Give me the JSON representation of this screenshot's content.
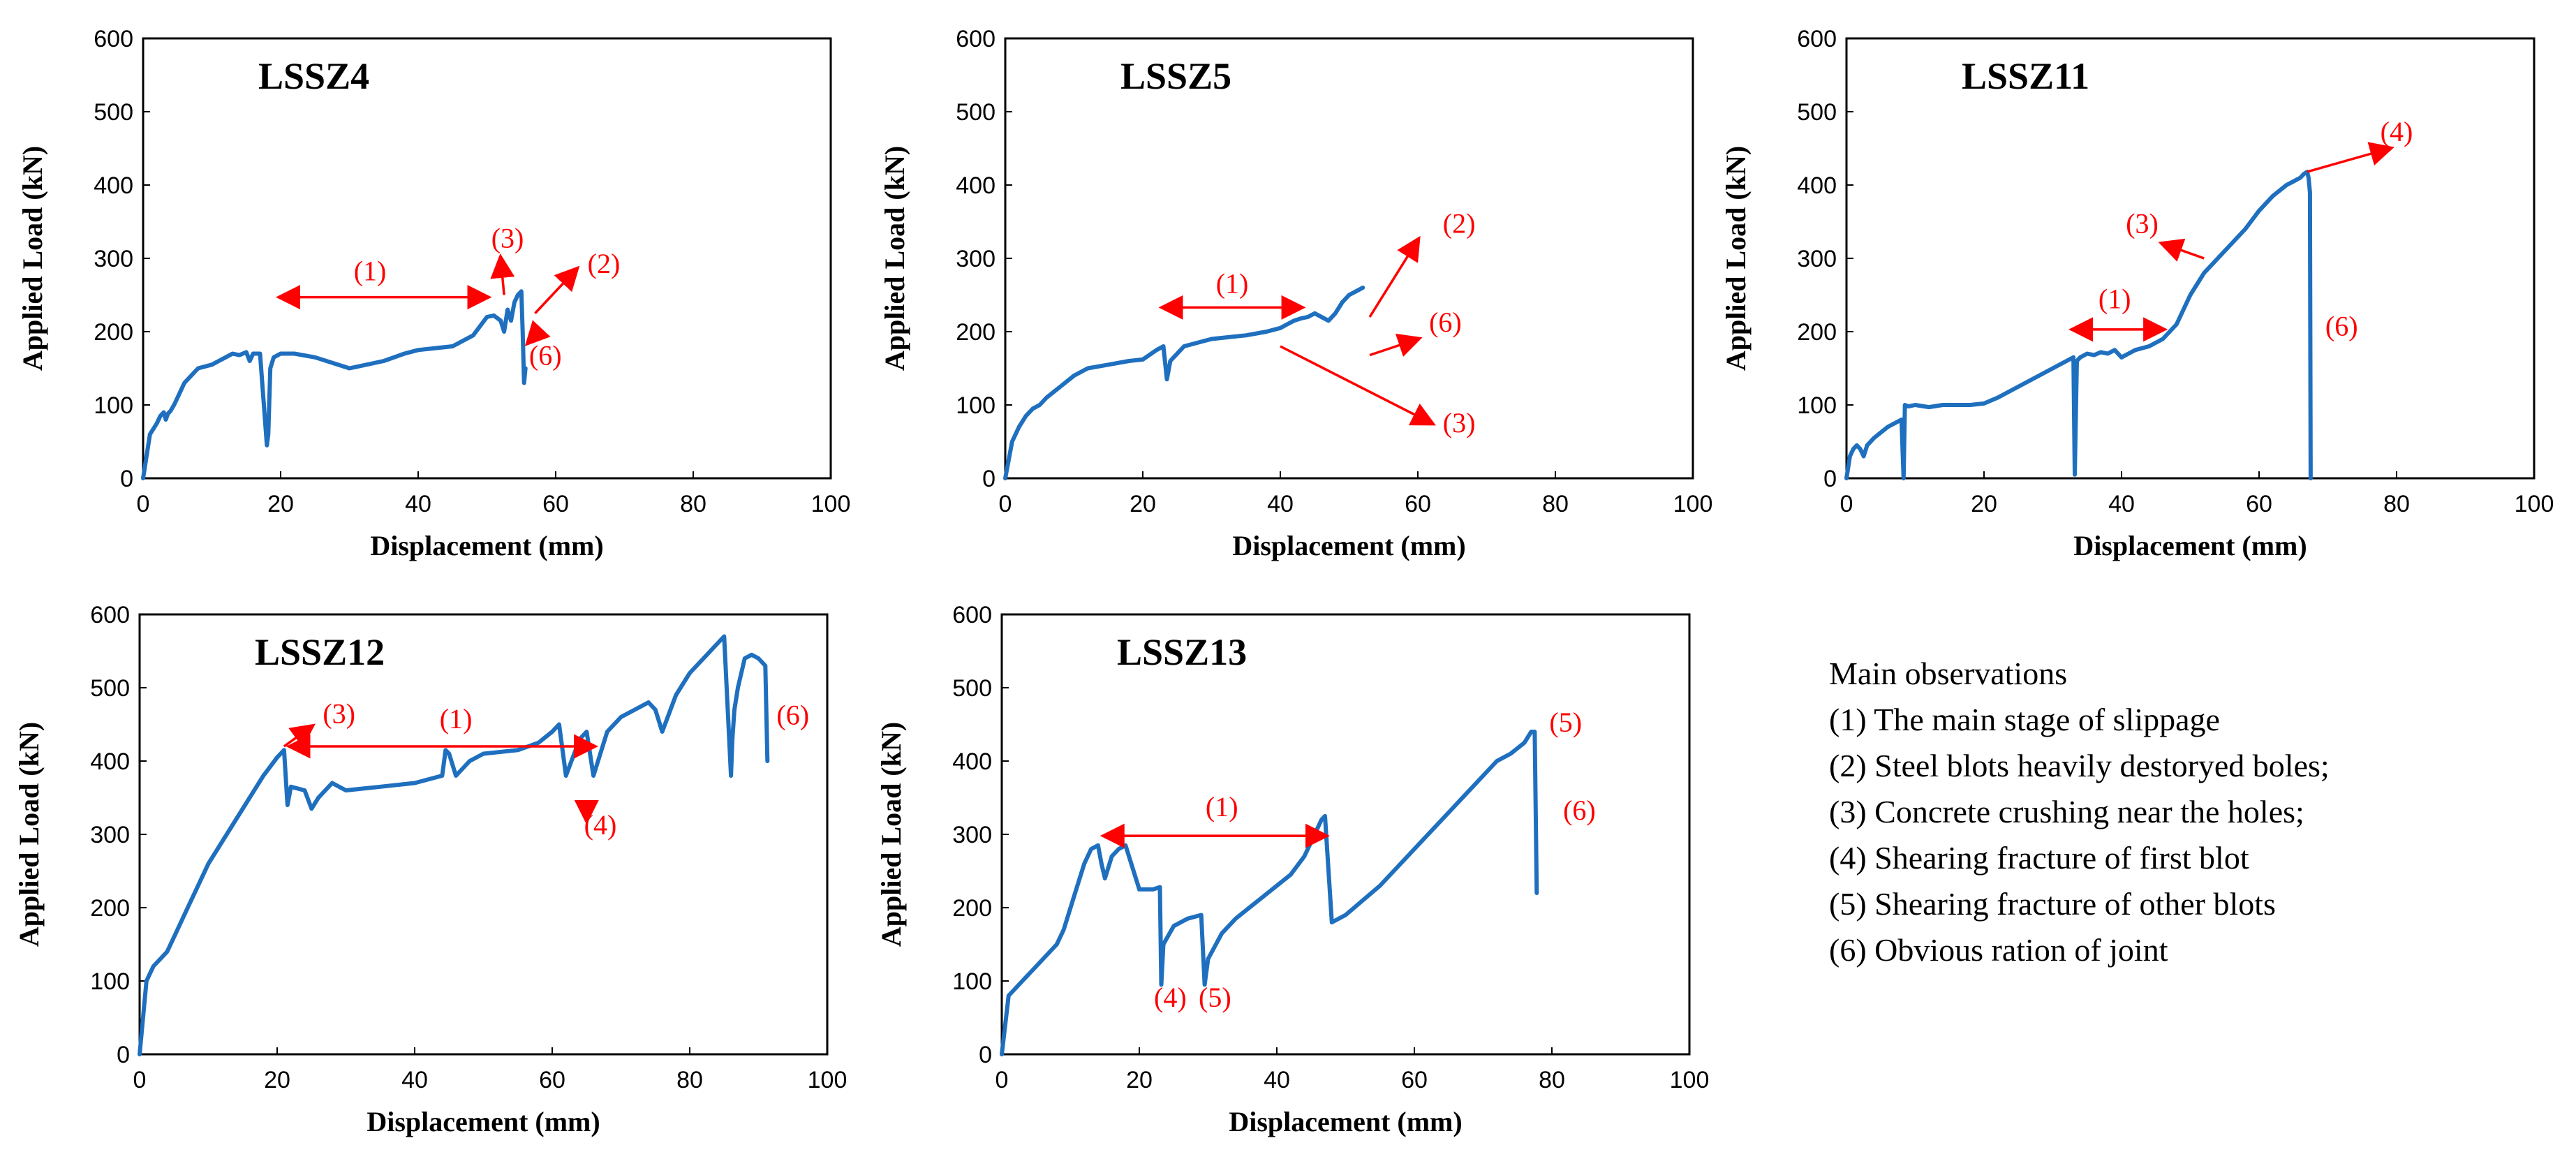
{
  "colors": {
    "curve": "#1f6fbf",
    "annotation": "#ff0000",
    "axis": "#000000"
  },
  "chart_data": [
    {
      "type": "line",
      "title": "LSSZ4",
      "xlabel": "Displacement (mm)",
      "ylabel": "Applied Load (kN)",
      "xlim": [
        0,
        100
      ],
      "ylim": [
        0,
        600
      ],
      "xticks": [
        "0",
        "20",
        "40",
        "60",
        "80",
        "100"
      ],
      "yticks": [
        "0",
        "100",
        "200",
        "300",
        "400",
        "500",
        "600"
      ],
      "series": [
        {
          "name": "LSSZ4",
          "x": [
            0,
            1,
            2,
            2.5,
            3,
            3.3,
            3.6,
            4,
            4.5,
            5,
            5.5,
            6,
            7,
            8,
            10,
            11,
            12,
            13,
            14,
            15,
            15.5,
            16,
            17,
            18,
            18.2,
            18.5,
            19,
            20,
            22,
            25,
            30,
            35,
            38,
            40,
            45,
            48,
            50,
            51,
            52,
            52.5,
            53,
            53.5,
            54,
            54.5,
            55,
            55.2,
            55.4,
            55.6
          ],
          "y": [
            0,
            60,
            75,
            85,
            90,
            80,
            88,
            92,
            100,
            110,
            120,
            130,
            140,
            150,
            155,
            160,
            165,
            170,
            168,
            172,
            160,
            170,
            170,
            45,
            60,
            150,
            165,
            170,
            170,
            165,
            150,
            160,
            170,
            175,
            180,
            195,
            220,
            222,
            215,
            200,
            230,
            215,
            240,
            250,
            255,
            200,
            130,
            150
          ]
        }
      ],
      "annotations": [
        {
          "label": "(1)",
          "x": 33,
          "y": 270,
          "arrow": "double",
          "from": [
            20,
            247
          ],
          "to": [
            50,
            247
          ]
        },
        {
          "label": "(3)",
          "x": 53,
          "y": 315,
          "arrow": "single",
          "from": [
            52.5,
            250
          ],
          "to": [
            52,
            300
          ]
        },
        {
          "label": "(2)",
          "x": 67,
          "y": 280,
          "arrow": "single",
          "from": [
            57,
            225
          ],
          "to": [
            63,
            285
          ]
        },
        {
          "label": "(6)",
          "x": 58.5,
          "y": 155,
          "arrow": "single",
          "from": [
            57.5,
            200
          ],
          "to": [
            56,
            185
          ]
        }
      ]
    },
    {
      "type": "line",
      "title": "LSSZ5",
      "xlabel": "Displacement (mm)",
      "ylabel": "Applied Load (kN)",
      "xlim": [
        0,
        100
      ],
      "ylim": [
        0,
        600
      ],
      "xticks": [
        "0",
        "20",
        "40",
        "60",
        "80",
        "100"
      ],
      "yticks": [
        "0",
        "100",
        "200",
        "300",
        "400",
        "500",
        "600"
      ],
      "series": [
        {
          "name": "LSSZ5",
          "x": [
            0,
            1,
            2,
            3,
            4,
            5,
            6,
            8,
            10,
            12,
            15,
            18,
            20,
            22,
            23,
            23.5,
            24,
            26,
            30,
            35,
            38,
            40,
            41,
            42,
            43,
            44,
            45,
            47,
            48,
            49,
            50,
            51,
            52
          ],
          "y": [
            0,
            50,
            70,
            85,
            95,
            100,
            110,
            125,
            140,
            150,
            155,
            160,
            162,
            175,
            180,
            135,
            160,
            180,
            190,
            195,
            200,
            205,
            210,
            215,
            218,
            220,
            225,
            215,
            225,
            240,
            250,
            255,
            260
          ]
        }
      ],
      "annotations": [
        {
          "label": "(1)",
          "x": 33,
          "y": 253,
          "arrow": "double",
          "from": [
            23,
            233
          ],
          "to": [
            43,
            233
          ]
        },
        {
          "label": "(2)",
          "x": 66,
          "y": 335,
          "arrow": "single",
          "from": [
            53,
            220
          ],
          "to": [
            60,
            325
          ]
        },
        {
          "label": "(6)",
          "x": 64,
          "y": 200,
          "arrow": "single",
          "from": [
            53,
            168
          ],
          "to": [
            60,
            190
          ]
        },
        {
          "label": "(3)",
          "x": 66,
          "y": 63,
          "arrow": "single",
          "from": [
            40,
            180
          ],
          "to": [
            62,
            75
          ]
        }
      ]
    },
    {
      "type": "line",
      "title": "LSSZ11",
      "xlabel": "Displacement (mm)",
      "ylabel": "Applied Load (kN)",
      "xlim": [
        0,
        100
      ],
      "ylim": [
        0,
        600
      ],
      "xticks": [
        "0",
        "20",
        "40",
        "60",
        "80",
        "100"
      ],
      "yticks": [
        "0",
        "100",
        "200",
        "300",
        "400",
        "500",
        "600"
      ],
      "series": [
        {
          "name": "LSSZ11",
          "x": [
            0,
            0.5,
            1,
            1.5,
            2,
            2.5,
            3,
            4,
            6,
            8,
            8.3,
            8.5,
            9,
            10,
            12,
            14,
            16,
            18,
            20,
            22,
            24,
            26,
            28,
            30,
            32,
            33,
            33.2,
            33.5,
            34,
            35,
            36,
            37,
            38,
            39,
            40,
            42,
            44,
            46,
            48,
            50,
            52,
            54,
            56,
            58,
            60,
            62,
            64,
            65,
            66,
            66.5,
            67,
            67.2,
            67.4,
            67.5
          ],
          "y": [
            0,
            30,
            40,
            45,
            40,
            30,
            45,
            55,
            70,
            80,
            0,
            100,
            98,
            100,
            97,
            100,
            100,
            100,
            102,
            110,
            120,
            130,
            140,
            150,
            160,
            165,
            5,
            160,
            165,
            170,
            168,
            172,
            170,
            175,
            165,
            175,
            180,
            190,
            210,
            250,
            280,
            300,
            320,
            340,
            365,
            385,
            400,
            405,
            410,
            415,
            418,
            410,
            390,
            0
          ]
        }
      ],
      "annotations": [
        {
          "label": "(1)",
          "x": 39,
          "y": 232,
          "arrow": "double",
          "from": [
            33,
            203
          ],
          "to": [
            46,
            203
          ]
        },
        {
          "label": "(3)",
          "x": 43,
          "y": 335,
          "arrow": "single",
          "from": [
            52,
            300
          ],
          "to": [
            46,
            320
          ]
        },
        {
          "label": "(4)",
          "x": 80,
          "y": 460,
          "arrow": "single",
          "from": [
            67,
            418
          ],
          "to": [
            79,
            450
          ]
        },
        {
          "label": "(6)",
          "x": 72,
          "y": 195,
          "arrow": "none",
          "from": [
            72,
            195
          ],
          "to": [
            72,
            195
          ]
        }
      ]
    },
    {
      "type": "line",
      "title": "LSSZ12",
      "xlabel": "Displacement (mm)",
      "ylabel": "Applied Load (kN)",
      "xlim": [
        0,
        100
      ],
      "ylim": [
        0,
        600
      ],
      "xticks": [
        "0",
        "20",
        "40",
        "60",
        "80",
        "100"
      ],
      "yticks": [
        "0",
        "100",
        "200",
        "300",
        "400",
        "500",
        "600"
      ],
      "series": [
        {
          "name": "LSSZ12",
          "x": [
            0,
            1,
            2,
            3,
            4,
            5,
            6,
            7,
            8,
            10,
            12,
            14,
            16,
            18,
            20,
            21,
            21.5,
            22,
            24,
            25,
            26,
            28,
            30,
            35,
            40,
            44,
            44.5,
            45,
            46,
            48,
            50,
            55,
            58,
            60,
            61,
            62,
            64,
            65,
            66,
            68,
            70,
            72,
            74,
            75,
            76,
            78,
            80,
            82,
            84,
            85,
            86,
            86.2,
            86.5,
            87,
            88,
            89,
            90,
            91,
            91.3
          ],
          "y": [
            0,
            100,
            120,
            130,
            140,
            160,
            180,
            200,
            220,
            260,
            290,
            320,
            350,
            380,
            405,
            415,
            340,
            365,
            360,
            335,
            350,
            370,
            360,
            365,
            370,
            380,
            415,
            410,
            380,
            400,
            410,
            415,
            425,
            440,
            450,
            380,
            430,
            440,
            380,
            440,
            460,
            470,
            480,
            470,
            440,
            490,
            520,
            540,
            560,
            570,
            380,
            430,
            470,
            500,
            540,
            545,
            540,
            530,
            400
          ]
        }
      ],
      "annotations": [
        {
          "label": "(3)",
          "x": 29,
          "y": 452,
          "arrow": "single",
          "from": [
            21,
            420
          ],
          "to": [
            25,
            447
          ]
        },
        {
          "label": "(1)",
          "x": 46,
          "y": 445,
          "arrow": "double",
          "from": [
            22,
            420
          ],
          "to": [
            66,
            420
          ]
        },
        {
          "label": "(4)",
          "x": 67,
          "y": 300,
          "arrow": "single",
          "from": [
            65,
            325
          ],
          "to": [
            65,
            320
          ]
        },
        {
          "label": "(6)",
          "x": 95,
          "y": 450,
          "arrow": "none",
          "from": [
            95,
            450
          ],
          "to": [
            95,
            450
          ]
        }
      ]
    },
    {
      "type": "line",
      "title": "LSSZ13",
      "xlabel": "Displacement (mm)",
      "ylabel": "Applied Load (kN)",
      "xlim": [
        0,
        100
      ],
      "ylim": [
        0,
        600
      ],
      "xticks": [
        "0",
        "20",
        "40",
        "60",
        "80",
        "100"
      ],
      "yticks": [
        "0",
        "100",
        "200",
        "300",
        "400",
        "500",
        "600"
      ],
      "series": [
        {
          "name": "LSSZ13",
          "x": [
            0,
            1,
            2,
            3,
            4,
            5,
            6,
            7,
            8,
            9,
            10,
            11,
            12,
            13,
            14,
            14.5,
            15,
            16,
            17,
            18,
            20,
            22,
            23,
            23.2,
            23.5,
            25,
            27,
            29,
            29.5,
            30,
            32,
            34,
            36,
            38,
            40,
            42,
            44,
            45,
            46,
            46.5,
            47,
            48,
            50,
            55,
            60,
            65,
            70,
            72,
            74,
            76,
            77,
            77.5,
            77.8
          ],
          "y": [
            0,
            80,
            90,
            100,
            110,
            120,
            130,
            140,
            150,
            170,
            200,
            230,
            260,
            280,
            285,
            260,
            240,
            270,
            280,
            285,
            225,
            225,
            228,
            95,
            150,
            175,
            185,
            190,
            95,
            130,
            165,
            185,
            200,
            215,
            230,
            245,
            270,
            290,
            310,
            320,
            325,
            180,
            190,
            230,
            280,
            330,
            380,
            400,
            410,
            425,
            440,
            440,
            220
          ]
        }
      ],
      "annotations": [
        {
          "label": "(1)",
          "x": 32,
          "y": 325,
          "arrow": "double",
          "from": [
            15,
            298
          ],
          "to": [
            47,
            298
          ]
        },
        {
          "label": "(4)",
          "x": 24.5,
          "y": 65,
          "arrow": "none",
          "from": [
            24.5,
            65
          ],
          "to": [
            24.5,
            65
          ]
        },
        {
          "label": "(5)",
          "x": 31,
          "y": 65,
          "arrow": "none",
          "from": [
            31,
            65
          ],
          "to": [
            31,
            65
          ]
        },
        {
          "label": "(5)",
          "x": 82,
          "y": 440,
          "arrow": "none",
          "from": [
            82,
            440
          ],
          "to": [
            82,
            440
          ]
        },
        {
          "label": "(6)",
          "x": 84,
          "y": 320,
          "arrow": "none",
          "from": [
            84,
            320
          ],
          "to": [
            84,
            320
          ]
        }
      ]
    }
  ],
  "legend": {
    "title": "Main observations",
    "items": [
      "(1) The main stage of slippage",
      "(2) Steel blots  heavily destoryed boles;",
      "(3) Concrete crushing near the holes;",
      "(4) Shearing fracture of first blot",
      "(5) Shearing fracture of other blots",
      "(6) Obvious ration of joint"
    ]
  }
}
